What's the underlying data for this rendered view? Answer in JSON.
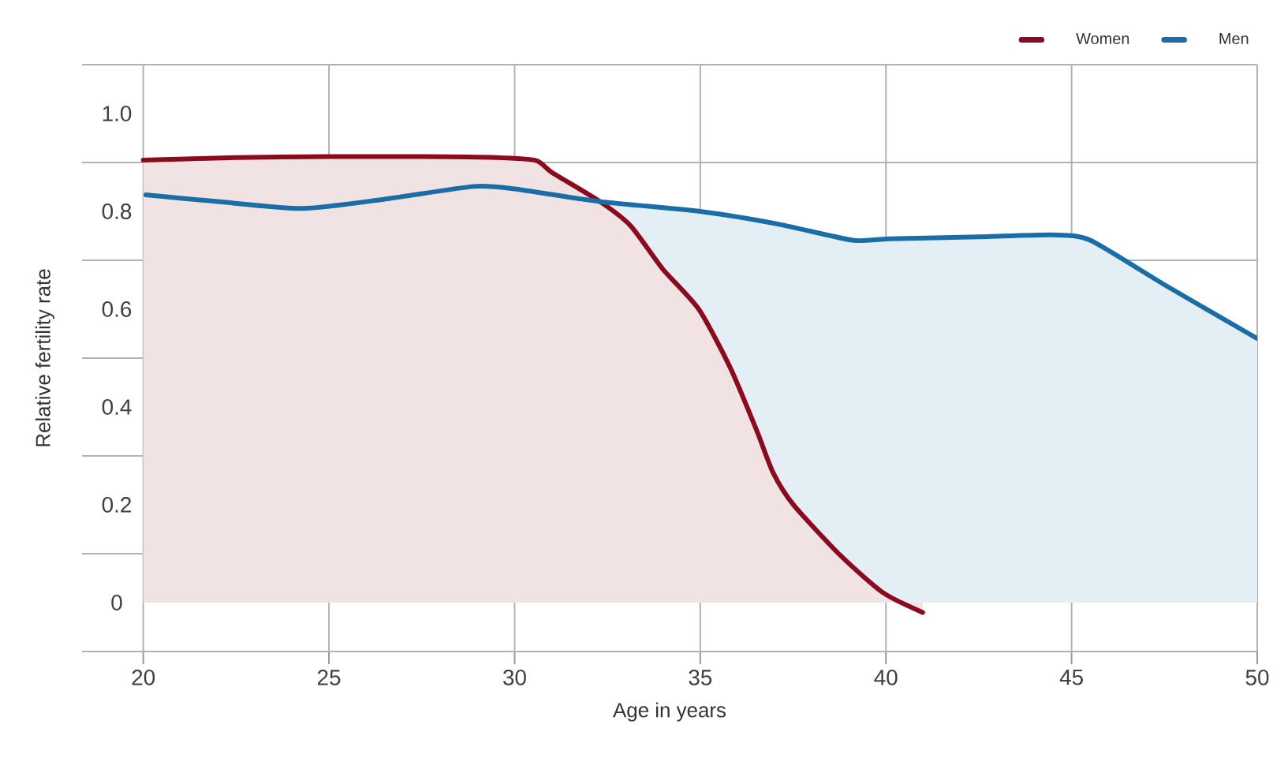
{
  "chart_data": {
    "type": "area",
    "xlabel": "Age in years",
    "ylabel": "Relative fertility rate",
    "xlim": [
      18.35,
      50
    ],
    "ylim": [
      -0.1,
      1.1
    ],
    "xticks": [
      20,
      25,
      30,
      35,
      40,
      45,
      50
    ],
    "yticks": [
      {
        "value": -0.1,
        "label": null
      },
      0,
      {
        "value": 0.1,
        "label": null
      },
      0.2,
      {
        "value": 0.3,
        "label": null
      },
      0.4,
      {
        "value": 0.5,
        "label": null
      },
      0.6,
      {
        "value": 0.7,
        "label": null
      },
      0.8,
      {
        "value": 0.9,
        "label": null
      },
      {
        "value": 1.0,
        "label": "1.0"
      },
      {
        "value": 1.1,
        "label": null
      }
    ],
    "grid": true,
    "legend": "top right",
    "series": [
      {
        "name": "Women",
        "color": "#8b0a1e",
        "x": [
          20,
          22.5,
          25,
          27.5,
          29.5,
          30.58,
          31,
          32.3,
          33.13,
          33.98,
          34.96,
          35.81,
          36.53,
          36.96,
          37.51,
          38.78,
          39.93,
          40.99
        ],
        "values": [
          0.905,
          0.91,
          0.912,
          0.912,
          0.91,
          0.904,
          0.88,
          0.82,
          0.77,
          0.683,
          0.6,
          0.48,
          0.35,
          0.266,
          0.2,
          0.096,
          0.02,
          -0.02
        ]
      },
      {
        "name": "Men",
        "color": "#1a6ea8",
        "x": [
          20.07,
          22,
          24.3,
          26.5,
          28.9,
          30,
          32.3,
          35,
          37.1,
          39.1,
          40.1,
          42.5,
          44.5,
          45.5,
          47.5,
          50
        ],
        "values": [
          0.834,
          0.82,
          0.806,
          0.825,
          0.851,
          0.846,
          0.82,
          0.8,
          0.774,
          0.741,
          0.744,
          0.748,
          0.752,
          0.741,
          0.65,
          0.54
        ]
      }
    ]
  }
}
